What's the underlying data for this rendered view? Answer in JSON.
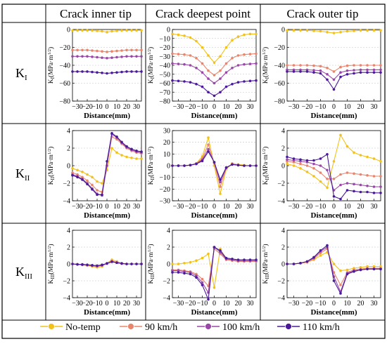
{
  "headers": [
    "Crack inner tip",
    "Crack deepest point",
    "Crack outer tip"
  ],
  "row_labels": [
    {
      "main": "K",
      "sub": "I"
    },
    {
      "main": "K",
      "sub": "II"
    },
    {
      "main": "K",
      "sub": "III"
    }
  ],
  "x_label": "Distance(mm)",
  "legend": [
    {
      "name": "No-temp",
      "color": "#f2c21b"
    },
    {
      "name": "90 km/h",
      "color": "#e8856d"
    },
    {
      "name": "100 km/h",
      "color": "#9a48a8"
    },
    {
      "name": "110 km/h",
      "color": "#4b1a9a"
    }
  ],
  "chart_data": [
    {
      "row": 0,
      "col": 0,
      "type": "line",
      "ylabel": "KI(MPa·m1/2)",
      "ylim": [
        -80,
        0
      ],
      "yticks": [
        0,
        -20,
        -40,
        -60,
        -80
      ],
      "xlim": [
        -35,
        35
      ],
      "xticks": [
        -30,
        -20,
        -10,
        0,
        10,
        20,
        30
      ],
      "x": [
        -35,
        -30,
        -25,
        -20,
        -15,
        -10,
        -5,
        0,
        5,
        10,
        15,
        20,
        25,
        30,
        35
      ],
      "series": [
        {
          "name": "No-temp",
          "values": [
            -1,
            -1,
            -1,
            -1,
            -1.2,
            -1.5,
            -2,
            -3,
            -2,
            -1.5,
            -1.2,
            -1,
            -1,
            -1,
            -1
          ]
        },
        {
          "name": "90 km/h",
          "values": [
            -23,
            -23,
            -23,
            -23,
            -23.5,
            -24,
            -24.5,
            -25,
            -24.5,
            -24,
            -23.5,
            -23,
            -23,
            -23,
            -23
          ]
        },
        {
          "name": "100 km/h",
          "values": [
            -30,
            -30,
            -30,
            -30,
            -30.5,
            -31,
            -31.5,
            -32,
            -31.5,
            -31,
            -30.5,
            -30,
            -30,
            -30,
            -30
          ]
        },
        {
          "name": "110 km/h",
          "values": [
            -47,
            -47,
            -47,
            -47,
            -47.5,
            -48,
            -48.5,
            -49,
            -48.5,
            -48,
            -47.5,
            -47,
            -47,
            -47,
            -47
          ]
        }
      ]
    },
    {
      "row": 0,
      "col": 1,
      "type": "line",
      "ylabel": "KI(MPa·m1/2)",
      "ylim": [
        -80,
        0
      ],
      "yticks": [
        0,
        -10,
        -20,
        -30,
        -40,
        -50,
        -60,
        -70,
        -80
      ],
      "xlim": [
        -35,
        35
      ],
      "xticks": [
        -30,
        -20,
        -10,
        0,
        10,
        20,
        30
      ],
      "x": [
        -35,
        -30,
        -25,
        -20,
        -15,
        -10,
        -5,
        0,
        5,
        10,
        15,
        20,
        25,
        30,
        35
      ],
      "series": [
        {
          "name": "No-temp",
          "values": [
            -5,
            -6,
            -7,
            -9,
            -13,
            -20,
            -29,
            -37,
            -30,
            -20,
            -12,
            -8,
            -6,
            -5,
            -5
          ]
        },
        {
          "name": "90 km/h",
          "values": [
            -27,
            -27.5,
            -28,
            -29,
            -32,
            -38,
            -46,
            -51,
            -46,
            -38,
            -32,
            -29,
            -28,
            -27.5,
            -27
          ]
        },
        {
          "name": "100 km/h",
          "values": [
            -38,
            -38.5,
            -39,
            -40,
            -43,
            -48,
            -55,
            -60,
            -55,
            -48,
            -43,
            -40,
            -39,
            -38.5,
            -38
          ]
        },
        {
          "name": "110 km/h",
          "values": [
            -57,
            -57.5,
            -58,
            -59,
            -61,
            -64,
            -70,
            -74,
            -70,
            -64,
            -61,
            -59,
            -58,
            -57.5,
            -57
          ]
        }
      ]
    },
    {
      "row": 0,
      "col": 2,
      "type": "line",
      "ylabel": "KI(MPa·m1/2)",
      "ylim": [
        -80,
        0
      ],
      "yticks": [
        0,
        -20,
        -40,
        -60,
        -80
      ],
      "xlim": [
        -35,
        35
      ],
      "xticks": [
        -30,
        -20,
        -10,
        0,
        10,
        20,
        30
      ],
      "x": [
        -35,
        -30,
        -25,
        -20,
        -15,
        -10,
        -5,
        0,
        5,
        10,
        15,
        20,
        25,
        30,
        35
      ],
      "series": [
        {
          "name": "No-temp",
          "values": [
            -1,
            -1,
            -1,
            -1,
            -1.5,
            -2,
            -3,
            -4,
            -3,
            -2,
            -1.5,
            -1,
            -1,
            -1,
            -1
          ]
        },
        {
          "name": "90 km/h",
          "values": [
            -40,
            -40,
            -40,
            -40,
            -40.5,
            -41,
            -43,
            -47,
            -42,
            -40.5,
            -40,
            -40,
            -40,
            -40,
            -40
          ]
        },
        {
          "name": "100 km/h",
          "values": [
            -45,
            -45,
            -45,
            -45,
            -45.5,
            -46,
            -50,
            -56,
            -48,
            -46,
            -45.5,
            -45,
            -45,
            -45,
            -45
          ]
        },
        {
          "name": "110 km/h",
          "values": [
            -47,
            -47,
            -47,
            -47,
            -48,
            -49,
            -56,
            -67,
            -53,
            -50,
            -49,
            -48,
            -48,
            -48,
            -48
          ]
        }
      ]
    },
    {
      "row": 1,
      "col": 0,
      "type": "line",
      "ylabel": "KII(MPa·m1/2)",
      "ylim": [
        -4,
        4
      ],
      "yticks": [
        4,
        2,
        0,
        -2,
        -4
      ],
      "xlim": [
        -35,
        35
      ],
      "xticks": [
        -30,
        -20,
        -10,
        0,
        10,
        20,
        30
      ],
      "x": [
        -35,
        -30,
        -25,
        -20,
        -15,
        -10,
        -5,
        0,
        5,
        10,
        15,
        20,
        25,
        30,
        35
      ],
      "series": [
        {
          "name": "No-temp",
          "values": [
            -0.3,
            -0.5,
            -0.7,
            -1,
            -1.3,
            -1.8,
            -2,
            -0.5,
            2,
            1.5,
            1.2,
            1,
            0.9,
            0.8,
            0.8
          ]
        },
        {
          "name": "90 km/h",
          "values": [
            -0.8,
            -1,
            -1.3,
            -1.7,
            -2.2,
            -2.8,
            -3,
            0,
            3.3,
            3,
            2.5,
            2,
            1.7,
            1.5,
            1.4
          ]
        },
        {
          "name": "100 km/h",
          "values": [
            -1,
            -1.2,
            -1.5,
            -2,
            -2.6,
            -3.2,
            -3.4,
            0,
            3.6,
            3.2,
            2.6,
            2.1,
            1.8,
            1.6,
            1.5
          ]
        },
        {
          "name": "110 km/h",
          "values": [
            -1.1,
            -1.3,
            -1.6,
            -2.1,
            -2.7,
            -3.3,
            -3.3,
            0.5,
            3.7,
            3.3,
            2.7,
            2.2,
            1.9,
            1.7,
            1.6
          ]
        }
      ]
    },
    {
      "row": 1,
      "col": 1,
      "type": "line",
      "ylabel": "KII(MPa·m1/2)",
      "ylim": [
        -30,
        30
      ],
      "yticks": [
        30,
        20,
        10,
        0,
        -10,
        -20,
        -30
      ],
      "xlim": [
        -35,
        35
      ],
      "xticks": [
        -30,
        -20,
        -10,
        0,
        10,
        20,
        30
      ],
      "x": [
        -35,
        -30,
        -25,
        -20,
        -15,
        -10,
        -5,
        0,
        5,
        10,
        15,
        20,
        25,
        30,
        35
      ],
      "series": [
        {
          "name": "No-temp",
          "values": [
            0,
            0,
            0,
            0.5,
            2,
            8,
            24,
            0,
            -24,
            -3,
            2,
            1,
            0.5,
            0,
            0
          ]
        },
        {
          "name": "90 km/h",
          "values": [
            0,
            0,
            0,
            0.5,
            2,
            6,
            18,
            2,
            -18,
            -2,
            1.5,
            0.5,
            0,
            0,
            0
          ]
        },
        {
          "name": "100 km/h",
          "values": [
            0,
            0,
            0,
            0.5,
            1.5,
            5,
            14,
            3,
            -14,
            -2,
            1,
            0.5,
            0,
            0,
            0
          ]
        },
        {
          "name": "110 km/h",
          "values": [
            0,
            0,
            0,
            0.5,
            1.5,
            4,
            12,
            3,
            -12,
            -1.5,
            1,
            0.5,
            0,
            0,
            0
          ]
        }
      ]
    },
    {
      "row": 1,
      "col": 2,
      "type": "line",
      "ylabel": "KII(MPa·m1/2)",
      "ylim": [
        -4,
        4
      ],
      "yticks": [
        4,
        2,
        0,
        -2,
        -4
      ],
      "xlim": [
        -35,
        35
      ],
      "xticks": [
        -30,
        -20,
        -10,
        0,
        10,
        20,
        30
      ],
      "x": [
        -35,
        -30,
        -25,
        -20,
        -15,
        -10,
        -5,
        0,
        5,
        10,
        15,
        20,
        25,
        30,
        35
      ],
      "series": [
        {
          "name": "No-temp",
          "values": [
            0.2,
            0,
            -0.3,
            -0.7,
            -1.2,
            -1.8,
            -2.5,
            0.5,
            3.5,
            2.2,
            1.5,
            1.2,
            1,
            0.8,
            0.5
          ]
        },
        {
          "name": "90 km/h",
          "values": [
            0.5,
            0.4,
            0.2,
            0,
            -0.3,
            -0.8,
            -1.5,
            -1.5,
            -1,
            -0.8,
            -0.9,
            -1,
            -1.1,
            -1.2,
            -1.2
          ]
        },
        {
          "name": "100 km/h",
          "values": [
            0.7,
            0.6,
            0.5,
            0.4,
            0.2,
            0,
            -0.5,
            -2.8,
            -2.2,
            -2,
            -2.1,
            -2.2,
            -2.3,
            -2.4,
            -2.4
          ]
        },
        {
          "name": "110 km/h",
          "values": [
            1,
            0.8,
            0.7,
            0.6,
            0.6,
            0.8,
            1.3,
            -3.5,
            -3.8,
            -2.8,
            -2.9,
            -3,
            -3,
            -3.1,
            -3.1
          ]
        }
      ]
    },
    {
      "row": 2,
      "col": 0,
      "type": "line",
      "ylabel": "KIII(MPa·m1/2)",
      "ylim": [
        -4,
        4
      ],
      "yticks": [
        4,
        2,
        0,
        -2,
        -4
      ],
      "xlim": [
        -35,
        35
      ],
      "xticks": [
        -30,
        -20,
        -10,
        0,
        10,
        20,
        30
      ],
      "x": [
        -35,
        -30,
        -25,
        -20,
        -15,
        -10,
        -5,
        0,
        5,
        10,
        15,
        20,
        25,
        30,
        35
      ],
      "series": [
        {
          "name": "No-temp",
          "values": [
            0,
            -0.05,
            -0.1,
            -0.2,
            -0.3,
            -0.4,
            -0.3,
            0.1,
            0.5,
            0.3,
            0.1,
            0,
            0,
            0,
            0
          ]
        },
        {
          "name": "90 km/h",
          "values": [
            0,
            -0.05,
            -0.1,
            -0.15,
            -0.2,
            -0.3,
            -0.2,
            0.1,
            0.35,
            0.2,
            0.1,
            0,
            0,
            0,
            0
          ]
        },
        {
          "name": "100 km/h",
          "values": [
            0,
            -0.05,
            -0.1,
            -0.1,
            -0.2,
            -0.25,
            -0.15,
            0.05,
            0.3,
            0.15,
            0.05,
            0,
            0,
            0,
            0
          ]
        },
        {
          "name": "110 km/h",
          "values": [
            0,
            -0.05,
            -0.05,
            -0.1,
            -0.15,
            -0.2,
            -0.1,
            0.05,
            0.25,
            0.15,
            0.05,
            0,
            0,
            0,
            0
          ]
        }
      ]
    },
    {
      "row": 2,
      "col": 1,
      "type": "line",
      "ylabel": "KIII(MPa·m1/2)",
      "ylim": [
        -4,
        4
      ],
      "yticks": [
        4,
        2,
        0,
        -2,
        -4
      ],
      "xlim": [
        -35,
        35
      ],
      "xticks": [
        -30,
        -20,
        -10,
        0,
        10,
        20,
        30
      ],
      "x": [
        -35,
        -30,
        -25,
        -20,
        -15,
        -10,
        -5,
        0,
        5,
        10,
        15,
        20,
        25,
        30,
        35
      ],
      "series": [
        {
          "name": "No-temp",
          "values": [
            0,
            0,
            0.1,
            0.2,
            0.4,
            0.7,
            1.2,
            -2.8,
            1.8,
            0.6,
            0.5,
            0.4,
            0.3,
            0.3,
            0.3
          ]
        },
        {
          "name": "90 km/h",
          "values": [
            -0.7,
            -0.7,
            -0.8,
            -0.9,
            -1.2,
            -1.8,
            -2.6,
            1.8,
            1.2,
            0.5,
            0.4,
            0.3,
            0.3,
            0.3,
            0.3
          ]
        },
        {
          "name": "100 km/h",
          "values": [
            -0.8,
            -0.8,
            -0.9,
            -1,
            -1.4,
            -2.2,
            -3.4,
            2,
            1.4,
            0.6,
            0.5,
            0.4,
            0.4,
            0.4,
            0.4
          ]
        },
        {
          "name": "110 km/h",
          "values": [
            -1,
            -1,
            -1.1,
            -1.2,
            -1.6,
            -2.5,
            -4.2,
            2,
            1.6,
            0.7,
            0.6,
            0.5,
            0.5,
            0.5,
            0.5
          ]
        }
      ]
    },
    {
      "row": 2,
      "col": 2,
      "type": "line",
      "ylabel": "KIII(MPa·m1/2)",
      "ylim": [
        -4,
        4
      ],
      "yticks": [
        4,
        2,
        0,
        -2,
        -4
      ],
      "xlim": [
        -35,
        35
      ],
      "xticks": [
        -30,
        -20,
        -10,
        0,
        10,
        20,
        30
      ],
      "x": [
        -35,
        -30,
        -25,
        -20,
        -15,
        -10,
        -5,
        0,
        5,
        10,
        15,
        20,
        25,
        30,
        35
      ],
      "series": [
        {
          "name": "No-temp",
          "values": [
            0,
            0,
            0.1,
            0.2,
            0.5,
            1,
            1.4,
            0,
            -0.8,
            -0.7,
            -0.5,
            -0.4,
            -0.3,
            -0.3,
            -0.3
          ]
        },
        {
          "name": "90 km/h",
          "values": [
            0,
            0,
            0.1,
            0.2,
            0.6,
            1.3,
            1.8,
            -1,
            -2.5,
            -1,
            -0.7,
            -0.6,
            -0.5,
            -0.5,
            -0.5
          ]
        },
        {
          "name": "100 km/h",
          "values": [
            0,
            0,
            0.1,
            0.3,
            0.7,
            1.5,
            2,
            -1.5,
            -3.3,
            -1.1,
            -0.8,
            -0.7,
            -0.6,
            -0.6,
            -0.6
          ]
        },
        {
          "name": "110 km/h",
          "values": [
            0,
            0,
            0.1,
            0.3,
            0.8,
            1.6,
            2.2,
            -2,
            -3.5,
            -1.2,
            -0.9,
            -0.7,
            -0.6,
            -0.6,
            -0.6
          ]
        }
      ]
    }
  ]
}
